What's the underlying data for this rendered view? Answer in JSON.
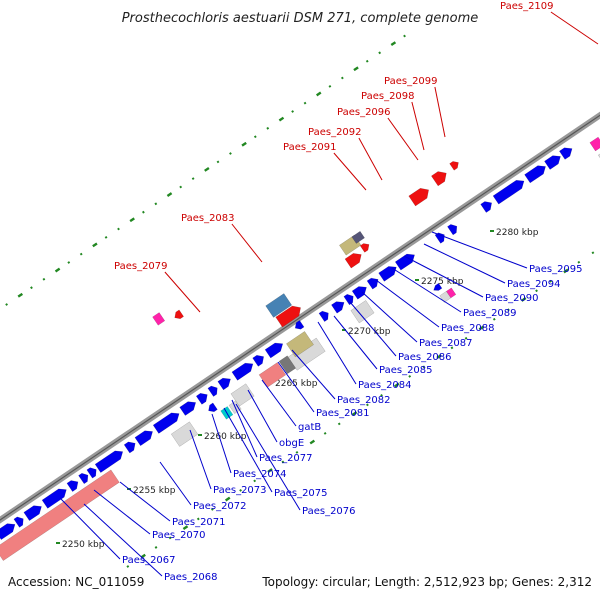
{
  "title": "Prosthecochloris aestuarii DSM 271, complete genome",
  "footer": {
    "accession": "Accession: NC_011059",
    "topology": "Topology: circular; Length: 2,512,923 bp; Genes: 2,312"
  },
  "colors": {
    "forward": "#0000ee",
    "rna": "#d9d9d9",
    "red": "#ee1111",
    "olive": "#c4b87a",
    "salmon": "#f08080",
    "steelblue": "#4682b4",
    "magenta": "#ff22aa",
    "cyan": "#00cccc",
    "gray": "#777777",
    "backbone": "#999999",
    "gc_dots": "#228822",
    "label_red": "#cc0000",
    "label_blue": "#0000cc"
  },
  "tick_labels": [
    {
      "id": "2250",
      "text": "2250 kbp"
    },
    {
      "id": "2255",
      "text": "2255 kbp"
    },
    {
      "id": "2260",
      "text": "2260 kbp"
    },
    {
      "id": "2265",
      "text": "2265 kbp"
    },
    {
      "id": "2270",
      "text": "2270 kbp"
    },
    {
      "id": "2275",
      "text": "2275 kbp"
    },
    {
      "id": "2280",
      "text": "2280 kbp"
    }
  ],
  "upper_labels": [
    {
      "id": "paes-2109",
      "text": "Paes_2109"
    },
    {
      "id": "paes-2099",
      "text": "Paes_2099"
    },
    {
      "id": "paes-2098",
      "text": "Paes_2098"
    },
    {
      "id": "paes-2096",
      "text": "Paes_2096"
    },
    {
      "id": "paes-2092",
      "text": "Paes_2092"
    },
    {
      "id": "paes-2091",
      "text": "Paes_2091"
    },
    {
      "id": "paes-2083",
      "text": "Paes_2083"
    },
    {
      "id": "paes-2079",
      "text": "Paes_2079"
    }
  ],
  "lower_labels": [
    {
      "id": "paes-2095",
      "text": "Paes_2095"
    },
    {
      "id": "paes-2094",
      "text": "Paes_2094"
    },
    {
      "id": "paes-2090",
      "text": "Paes_2090"
    },
    {
      "id": "paes-2089",
      "text": "Paes_2089"
    },
    {
      "id": "paes-2088",
      "text": "Paes_2088"
    },
    {
      "id": "paes-2087",
      "text": "Paes_2087"
    },
    {
      "id": "paes-2086",
      "text": "Paes_2086"
    },
    {
      "id": "paes-2085",
      "text": "Paes_2085"
    },
    {
      "id": "paes-2084",
      "text": "Paes_2084"
    },
    {
      "id": "paes-2082",
      "text": "Paes_2082"
    },
    {
      "id": "paes-2081",
      "text": "Paes_2081"
    },
    {
      "id": "gatb",
      "text": "gatB"
    },
    {
      "id": "obge",
      "text": "obgE"
    },
    {
      "id": "paes-2077",
      "text": "Paes_2077"
    },
    {
      "id": "paes-2074",
      "text": "Paes_2074"
    },
    {
      "id": "paes-2073",
      "text": "Paes_2073"
    },
    {
      "id": "paes-2075",
      "text": "Paes_2075"
    },
    {
      "id": "paes-2072",
      "text": "Paes_2072"
    },
    {
      "id": "paes-2076",
      "text": "Paes_2076"
    },
    {
      "id": "paes-2071",
      "text": "Paes_2071"
    },
    {
      "id": "paes-2070",
      "text": "Paes_2070"
    },
    {
      "id": "paes-2067",
      "text": "Paes_2067"
    },
    {
      "id": "paes-2068",
      "text": "Paes_2068"
    }
  ]
}
